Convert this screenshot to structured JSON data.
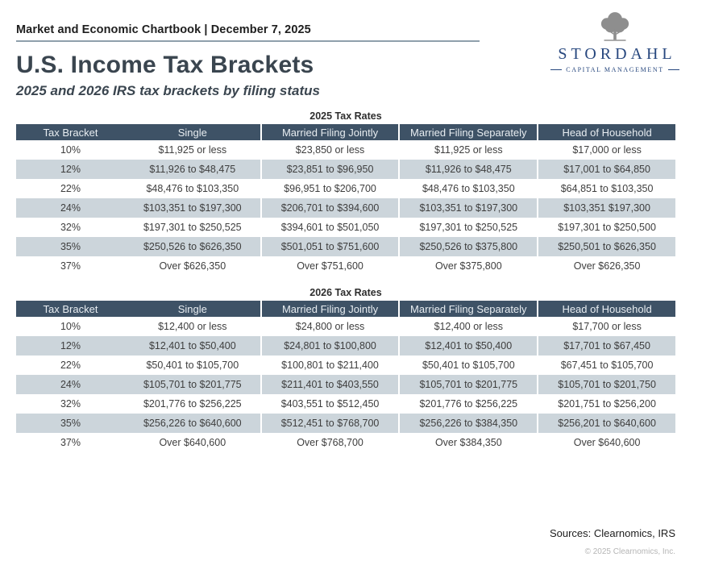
{
  "header": {
    "eyebrow": "Market and Economic Chartbook | December 7, 2025",
    "title": "U.S. Income Tax Brackets",
    "subtitle": "2025 and 2026 IRS tax brackets by filing status"
  },
  "logo": {
    "name": "STORDAHL",
    "tagline": "CAPITAL MANAGEMENT",
    "icon": "tree-icon"
  },
  "colors": {
    "table_header_bg": "#3e5266",
    "row_stripe": "#ccd5db",
    "brand_navy": "#27477e",
    "tree_gray": "#8e8e8e",
    "rule_gray": "#8fa0ac"
  },
  "tables": [
    {
      "title": "2025 Tax Rates",
      "columns": [
        "Tax Bracket",
        "Single",
        "Married Filing Jointly",
        "Married Filing Separately",
        "Head of Household"
      ],
      "rows": [
        [
          "10%",
          "$11,925 or less",
          "$23,850 or less",
          "$11,925 or less",
          "$17,000 or less"
        ],
        [
          "12%",
          "$11,926 to $48,475",
          "$23,851 to $96,950",
          "$11,926 to $48,475",
          "$17,001 to $64,850"
        ],
        [
          "22%",
          "$48,476 to $103,350",
          "$96,951 to $206,700",
          "$48,476 to $103,350",
          "$64,851 to $103,350"
        ],
        [
          "24%",
          "$103,351 to $197,300",
          "$206,701 to $394,600",
          "$103,351 to $197,300",
          "$103,351 $197,300"
        ],
        [
          "32%",
          "$197,301 to $250,525",
          "$394,601 to $501,050",
          "$197,301 to $250,525",
          "$197,301 to $250,500"
        ],
        [
          "35%",
          "$250,526 to $626,350",
          "$501,051 to $751,600",
          "$250,526 to $375,800",
          "$250,501 to $626,350"
        ],
        [
          "37%",
          "Over $626,350",
          "Over $751,600",
          "Over $375,800",
          "Over $626,350"
        ]
      ]
    },
    {
      "title": "2026 Tax Rates",
      "columns": [
        "Tax Bracket",
        "Single",
        "Married Filing Jointly",
        "Married Filing Separately",
        "Head of Household"
      ],
      "rows": [
        [
          "10%",
          "$12,400 or less",
          "$24,800 or less",
          "$12,400 or less",
          "$17,700 or less"
        ],
        [
          "12%",
          "$12,401 to $50,400",
          "$24,801 to $100,800",
          "$12,401 to $50,400",
          "$17,701 to $67,450"
        ],
        [
          "22%",
          "$50,401 to $105,700",
          "$100,801 to $211,400",
          "$50,401 to $105,700",
          "$67,451 to $105,700"
        ],
        [
          "24%",
          "$105,701 to $201,775",
          "$211,401 to $403,550",
          "$105,701 to $201,775",
          "$105,701 to $201,750"
        ],
        [
          "32%",
          "$201,776 to $256,225",
          "$403,551 to $512,450",
          "$201,776 to $256,225",
          "$201,751 to $256,200"
        ],
        [
          "35%",
          "$256,226 to $640,600",
          "$512,451 to $768,700",
          "$256,226 to $384,350",
          "$256,201 to $640,600"
        ],
        [
          "37%",
          "Over $640,600",
          "Over $768,700",
          "Over $384,350",
          "Over $640,600"
        ]
      ]
    }
  ],
  "footer": {
    "sources": "Sources: Clearnomics, IRS",
    "copyright": "© 2025 Clearnomics, Inc."
  }
}
